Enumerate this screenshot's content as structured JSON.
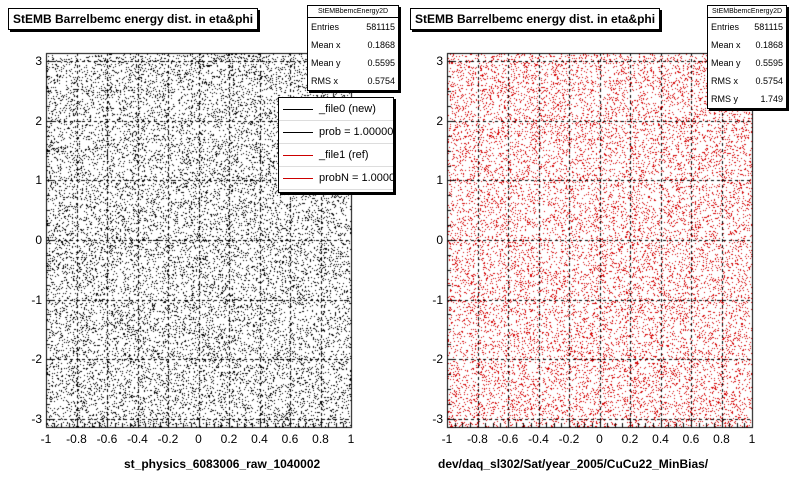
{
  "chart_data": [
    {
      "type": "scatter",
      "title": "StEMB Barrelbemc energy dist. in eta&phi",
      "xlabel": "st_physics_6083006_raw_1040002",
      "ylabel": "",
      "xlim": [
        -1,
        1
      ],
      "ylim": [
        -3.14,
        3.14
      ],
      "x_ticks": [
        "-1",
        "-0.8",
        "-0.6",
        "-0.4",
        "-0.2",
        "0",
        "0.2",
        "0.4",
        "0.6",
        "0.8",
        "1"
      ],
      "y_ticks": [
        "-3",
        "-2",
        "-1",
        "0",
        "1",
        "2",
        "3"
      ],
      "marker_color": "#000000",
      "grid": true,
      "stats": {
        "name": "StEMBbemcEnergy2D",
        "rows": [
          {
            "label": "Entries",
            "value": "581115"
          },
          {
            "label": "Mean x",
            "value": "0.1868"
          },
          {
            "label": "Mean y",
            "value": "0.5595"
          },
          {
            "label": "RMS x",
            "value": "0.5754"
          }
        ]
      },
      "legend": {
        "placement": "top-right",
        "entries": [
          {
            "label": "_file0 (new)",
            "color": "#000000"
          },
          {
            "label": "prob = 1.000000",
            "color": "#000000"
          },
          {
            "label": "_file1 (ref)",
            "color": "#cc0000"
          },
          {
            "label": "probN = 1.000000",
            "color": "#cc0000"
          }
        ]
      }
    },
    {
      "type": "scatter",
      "title": "StEMB Barrelbemc energy dist. in eta&phi",
      "xlabel": "dev/daq_sl302/Sat/year_2005/CuCu22_MinBias/",
      "ylabel": "",
      "xlim": [
        -1,
        1
      ],
      "ylim": [
        -3.14,
        3.14
      ],
      "x_ticks": [
        "-1",
        "-0.8",
        "-0.6",
        "-0.4",
        "-0.2",
        "0",
        "0.2",
        "0.4",
        "0.6",
        "0.8",
        "1"
      ],
      "y_ticks": [
        "-3",
        "-2",
        "-1",
        "0",
        "1",
        "2",
        "3"
      ],
      "marker_color": "#d40000",
      "grid": true,
      "stats": {
        "name": "StEMBbemcEnergy2D",
        "rows": [
          {
            "label": "Entries",
            "value": "581115"
          },
          {
            "label": "Mean x",
            "value": "0.1868"
          },
          {
            "label": "Mean y",
            "value": "0.5595"
          },
          {
            "label": "RMS x",
            "value": "0.5754"
          },
          {
            "label": "RMS y",
            "value": "1.749"
          }
        ]
      }
    }
  ]
}
